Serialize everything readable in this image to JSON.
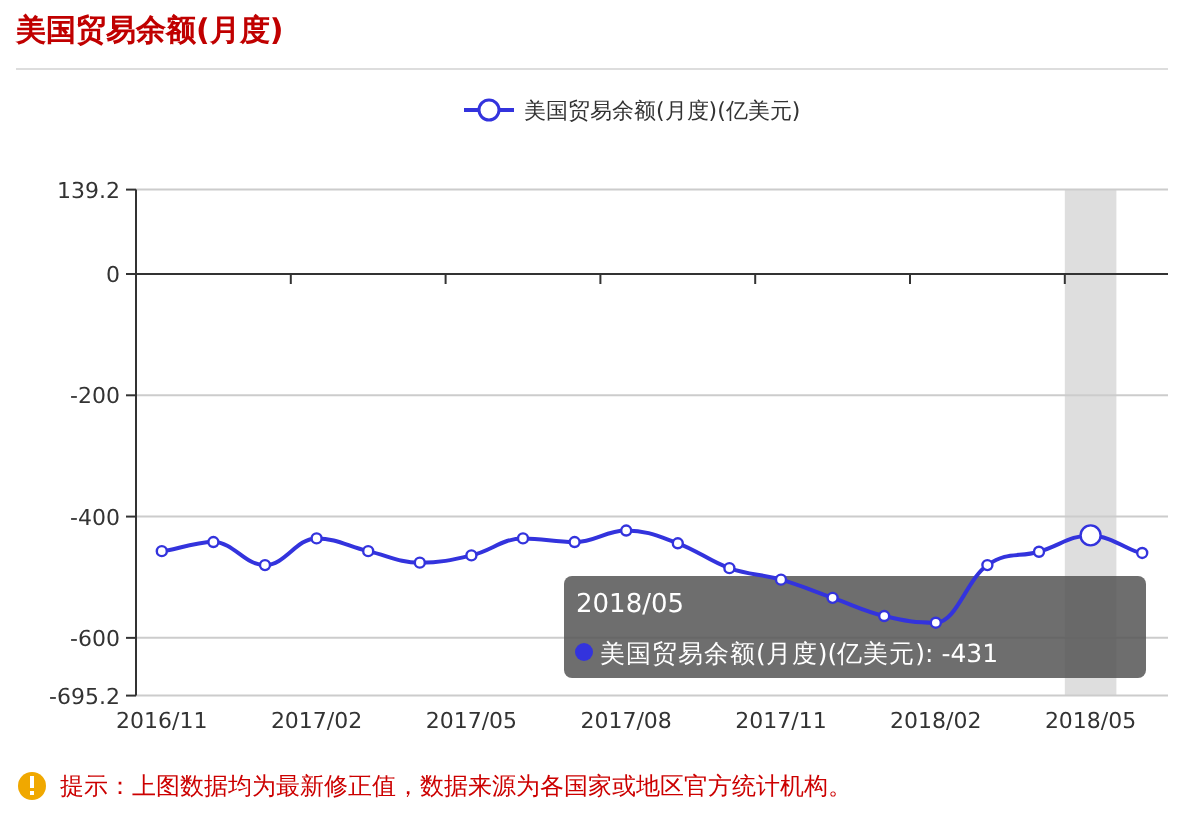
{
  "chart_data": {
    "type": "line",
    "title": "美国贸易余额(月度)",
    "categories": [
      "2016/11",
      null,
      null,
      "2017/02",
      null,
      null,
      "2017/05",
      null,
      null,
      "2017/08",
      null,
      null,
      "2017/11",
      null,
      null,
      "2018/02",
      null,
      null,
      "2018/05",
      null
    ],
    "series": [
      {
        "name": "美国贸易余额(月度)(亿美元)",
        "color": "#3333dd",
        "values": [
          -457,
          -442,
          -480,
          -436,
          -457,
          -476,
          -464,
          -436,
          -442,
          -423,
          -444,
          -485,
          -504,
          -534,
          -564,
          -575,
          -480,
          -458,
          -431,
          -460
        ]
      }
    ],
    "ylim": [
      -695.2,
      139.2
    ],
    "yticks": [
      139.2,
      0,
      -200,
      -400,
      -600,
      -695.2
    ],
    "grid": "y",
    "legend": "top",
    "marker": "circle",
    "line_style": "solid",
    "bands": [
      {
        "axis": "x",
        "from": "2018/05",
        "to": "2018/05",
        "color": "#dedede"
      }
    ],
    "annotations": [
      "美国贸易余额(月度)(亿美元): -431",
      "提示：上图数据均为最新修正值，数据来源为各国家或地区官方统计机构。"
    ]
  }
}
